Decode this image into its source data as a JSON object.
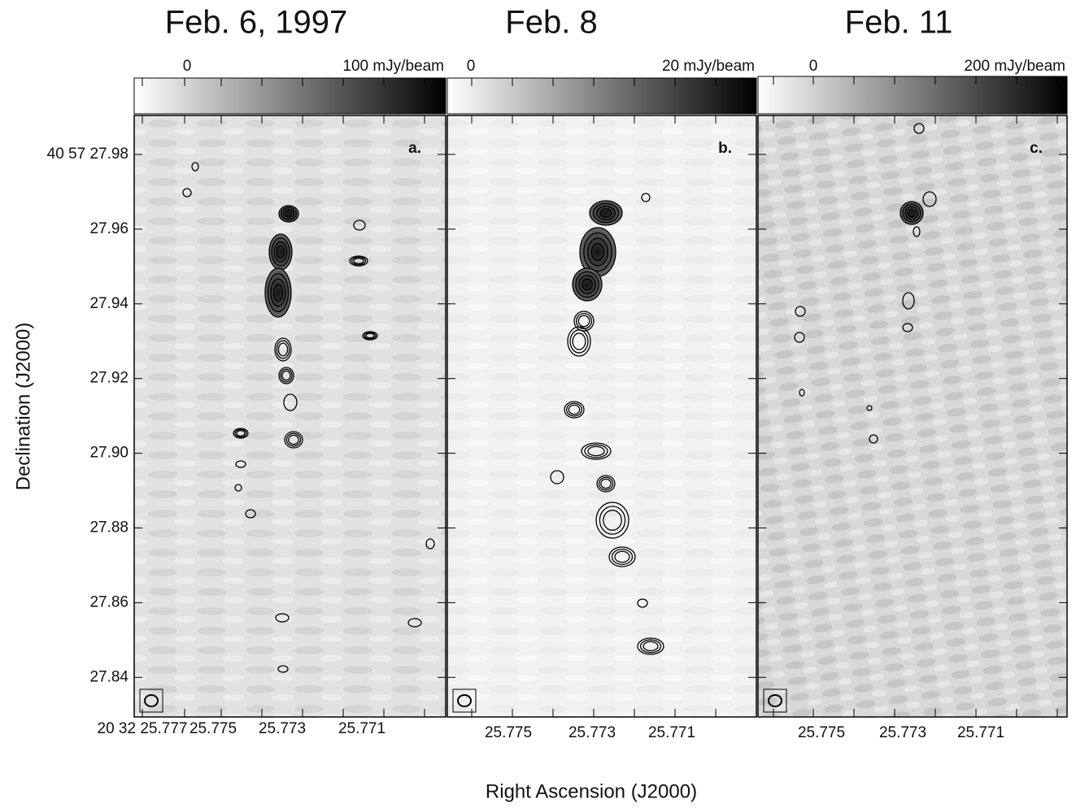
{
  "titles": [
    "Feb. 6, 1997",
    "Feb. 8",
    "Feb. 11"
  ],
  "panels": [
    {
      "colorbar_min": "0",
      "colorbar_max": "100 mJy/beam",
      "letter": "a.",
      "x_ticks": [
        "20 32 25.777",
        "25.775",
        "25.773",
        "25.771"
      ]
    },
    {
      "colorbar_min": "0",
      "colorbar_max": "20 mJy/beam",
      "letter": "b.",
      "x_ticks": [
        "25.775",
        "25.773",
        "25.771"
      ]
    },
    {
      "colorbar_min": "0",
      "colorbar_max": "200 mJy/beam",
      "letter": "c.",
      "x_ticks": [
        "25.775",
        "25.773",
        "25.771"
      ]
    }
  ],
  "y_ticks": [
    "40 57 27.98",
    "27.96",
    "27.94",
    "27.92",
    "27.90",
    "27.88",
    "27.86",
    "27.84"
  ],
  "y_axis_title": "Declination (J2000)",
  "x_axis_title": "Right Ascension (J2000)"
}
